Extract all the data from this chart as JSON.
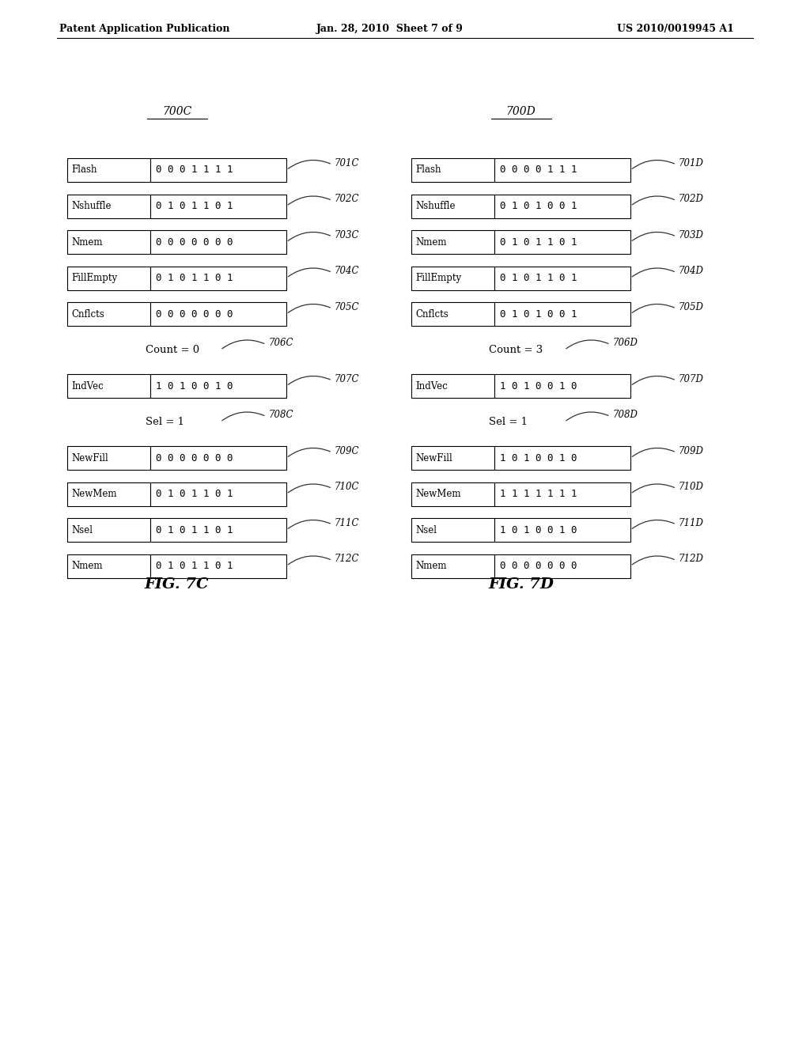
{
  "header_left": "Patent Application Publication",
  "header_center": "Jan. 28, 2010  Sheet 7 of 9",
  "header_right": "US 2010/0019945 A1",
  "fig_c_label": "700C",
  "fig_d_label": "700D",
  "fig_c_caption": "FIG. 7C",
  "fig_d_caption": "FIG. 7D",
  "left_rows": [
    {
      "label": "Flash",
      "bits": "0 0 0 1 1 1 1",
      "ref": "701C"
    },
    {
      "label": "Nshuffle",
      "bits": "0 1 0 1 1 0 1",
      "ref": "702C"
    },
    {
      "label": "Nmem",
      "bits": "0 0 0 0 0 0 0",
      "ref": "703C"
    },
    {
      "label": "FillEmpty",
      "bits": "0 1 0 1 1 0 1",
      "ref": "704C"
    },
    {
      "label": "Cnflcts",
      "bits": "0 0 0 0 0 0 0",
      "ref": "705C"
    },
    {
      "label": "COUNT",
      "bits": null,
      "ref": "706C",
      "text": "Count = 0"
    },
    {
      "label": "IndVec",
      "bits": "1 0 1 0 0 1 0",
      "ref": "707C"
    },
    {
      "label": "SEL",
      "bits": null,
      "ref": "708C",
      "text": "Sel = 1"
    },
    {
      "label": "NewFill",
      "bits": "0 0 0 0 0 0 0",
      "ref": "709C"
    },
    {
      "label": "NewMem",
      "bits": "0 1 0 1 1 0 1",
      "ref": "710C"
    },
    {
      "label": "Nsel",
      "bits": "0 1 0 1 1 0 1",
      "ref": "711C"
    },
    {
      "label": "Nmem",
      "bits": "0 1 0 1 1 0 1",
      "ref": "712C"
    }
  ],
  "right_rows": [
    {
      "label": "Flash",
      "bits": "0 0 0 0 1 1 1",
      "ref": "701D"
    },
    {
      "label": "Nshuffle",
      "bits": "0 1 0 1 0 0 1",
      "ref": "702D"
    },
    {
      "label": "Nmem",
      "bits": "0 1 0 1 1 0 1",
      "ref": "703D"
    },
    {
      "label": "FillEmpty",
      "bits": "0 1 0 1 1 0 1",
      "ref": "704D"
    },
    {
      "label": "Cnflcts",
      "bits": "0 1 0 1 0 0 1",
      "ref": "705D"
    },
    {
      "label": "COUNT",
      "bits": null,
      "ref": "706D",
      "text": "Count = 3"
    },
    {
      "label": "IndVec",
      "bits": "1 0 1 0 0 1 0",
      "ref": "707D"
    },
    {
      "label": "SEL",
      "bits": null,
      "ref": "708D",
      "text": "Sel = 1"
    },
    {
      "label": "NewFill",
      "bits": "1 0 1 0 0 1 0",
      "ref": "709D"
    },
    {
      "label": "NewMem",
      "bits": "1 1 1 1 1 1 1",
      "ref": "710D"
    },
    {
      "label": "Nsel",
      "bits": "1 0 1 0 0 1 0",
      "ref": "711D"
    },
    {
      "label": "Nmem",
      "bits": "0 0 0 0 0 0 0",
      "ref": "712D"
    }
  ],
  "bg_color": "#ffffff",
  "text_color": "#000000",
  "box_edge_color": "#000000"
}
